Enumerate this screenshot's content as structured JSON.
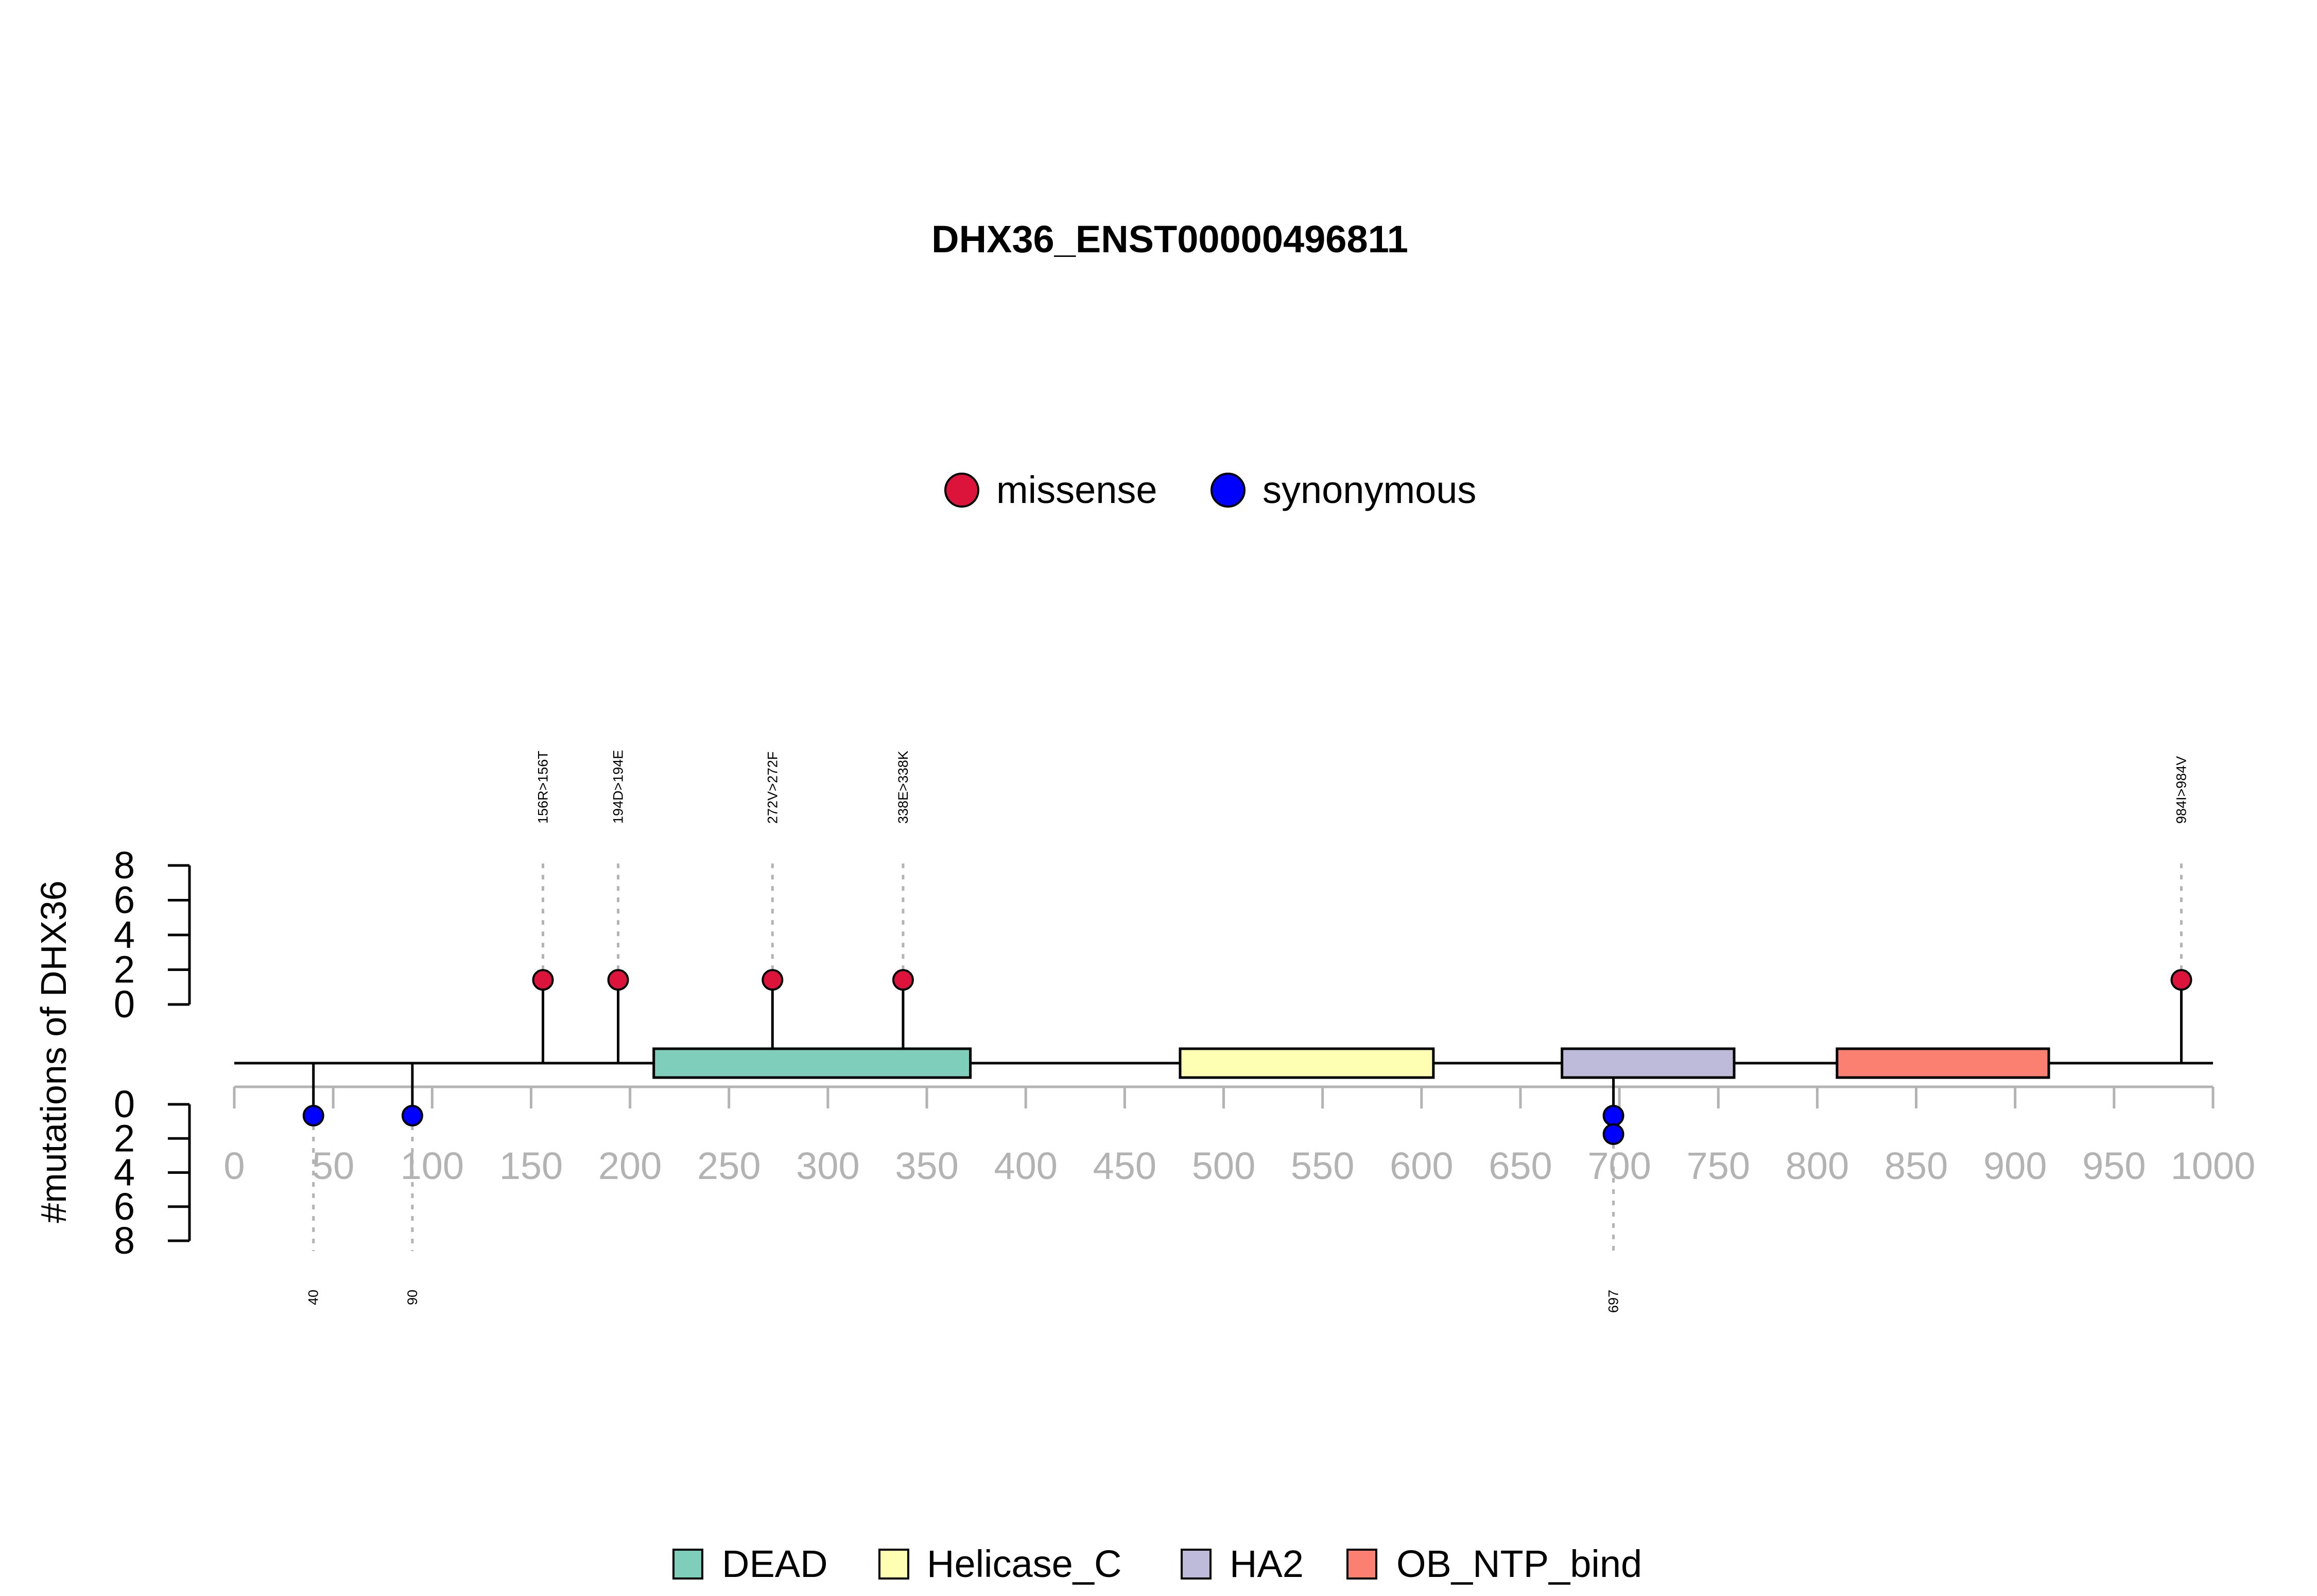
{
  "chart_data": {
    "type": "lollipop",
    "title": "DHX36_ENST00000496811",
    "ylabel": "#mutations of DHX36",
    "xlim": [
      0,
      1000
    ],
    "x_ticks": [
      "0",
      "50",
      "100",
      "150",
      "200",
      "250",
      "300",
      "350",
      "400",
      "450",
      "500",
      "550",
      "600",
      "650",
      "700",
      "750",
      "800",
      "850",
      "900",
      "950",
      "1000"
    ],
    "y_ticks_top": [
      "0",
      "2",
      "4",
      "6",
      "8"
    ],
    "y_ticks_bottom": [
      "0",
      "2",
      "4",
      "6",
      "8"
    ],
    "ylim": [
      0,
      8
    ],
    "legend_mutation": [
      {
        "name": "missense",
        "color": "#DC143C"
      },
      {
        "name": "synonymous",
        "color": "#0000FF"
      }
    ],
    "legend_domains": [
      {
        "name": "DEAD",
        "color": "#7FCDBB"
      },
      {
        "name": "Helicase_C",
        "color": "#FFFFB3"
      },
      {
        "name": "HA2",
        "color": "#BEBADA"
      },
      {
        "name": "OB_NTP_bind",
        "color": "#FB8072"
      }
    ],
    "domains": [
      {
        "name": "DEAD",
        "start": 212,
        "end": 372,
        "color": "#7FCDBB"
      },
      {
        "name": "Helicase_C",
        "start": 478,
        "end": 606,
        "color": "#FFFFB3"
      },
      {
        "name": "HA2",
        "start": 671,
        "end": 758,
        "color": "#BEBADA"
      },
      {
        "name": "OB_NTP_bind",
        "start": 810,
        "end": 917,
        "color": "#FB8072"
      }
    ],
    "mutations_top": [
      {
        "pos": 156,
        "count": 1,
        "label": "156R>156T",
        "type": "missense"
      },
      {
        "pos": 194,
        "count": 1,
        "label": "194D>194E",
        "type": "missense"
      },
      {
        "pos": 272,
        "count": 1,
        "label": "272V>272F",
        "type": "missense"
      },
      {
        "pos": 338,
        "count": 1,
        "label": "338E>338K",
        "type": "missense"
      },
      {
        "pos": 984,
        "count": 1,
        "label": "984I>984V",
        "type": "missense"
      }
    ],
    "mutations_bottom": [
      {
        "pos": 40,
        "count": 1,
        "label": "40",
        "type": "synonymous"
      },
      {
        "pos": 90,
        "count": 1,
        "label": "90",
        "type": "synonymous"
      },
      {
        "pos": 697,
        "count": 2,
        "label": "697",
        "type": "synonymous"
      }
    ]
  }
}
